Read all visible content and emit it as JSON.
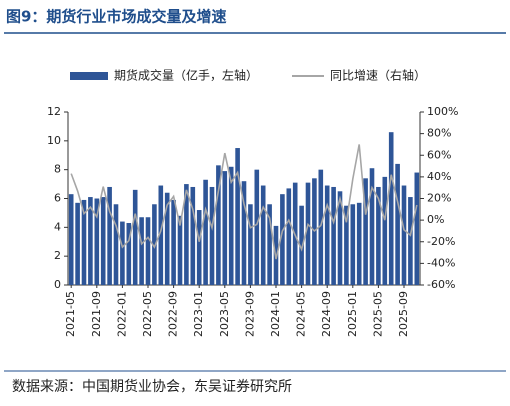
{
  "chart_data": {
    "type": "bar-line",
    "title": "图9：期货行业市场成交量及增速",
    "source": "数据来源：中国期货业协会，东吴证券研究所",
    "categories": [
      "2021-05",
      null,
      null,
      null,
      "2021-09",
      null,
      null,
      null,
      "2022-01",
      null,
      null,
      null,
      "2022-05",
      null,
      null,
      null,
      "2022-09",
      null,
      null,
      null,
      "2023-01",
      null,
      null,
      null,
      "2023-05",
      null,
      null,
      null,
      "2023-09",
      null,
      null,
      null,
      "2024-01",
      null,
      null,
      null,
      "2024-05",
      null,
      null,
      null,
      "2024-09",
      null,
      null,
      null,
      "2025-01",
      null,
      null,
      null,
      "2025-05",
      null,
      null,
      null,
      "2025-09",
      null,
      null
    ],
    "series": [
      {
        "name": "期货成交量（亿手，左轴）",
        "color": "#2e5597",
        "axis": "y",
        "values": [
          6.3,
          5.7,
          5.9,
          6.1,
          6.0,
          6.1,
          6.8,
          5.6,
          4.4,
          4.3,
          6.6,
          4.7,
          4.7,
          5.6,
          6.9,
          6.4,
          5.9,
          4.8,
          7.0,
          6.8,
          5.2,
          7.3,
          6.8,
          8.3,
          7.9,
          8.2,
          9.5,
          7.2,
          5.6,
          8.0,
          6.9,
          5.6,
          4.1,
          6.3,
          6.7,
          7.1,
          5.5,
          7.1,
          7.4,
          8.0,
          6.9,
          6.8,
          6.5,
          5.5,
          5.6,
          5.7,
          7.4,
          8.1,
          6.8,
          7.5,
          10.6,
          8.4,
          6.9,
          6.1,
          7.8
        ]
      },
      {
        "name": "同比增速（右轴）",
        "color": "#a6a6a6",
        "axis": "y2",
        "values": [
          43,
          27,
          6,
          12,
          3,
          31,
          8,
          -5,
          -25,
          -19,
          6,
          -22,
          -16,
          -25,
          -10,
          14,
          22,
          -5,
          28,
          10,
          -20,
          10,
          -7,
          27,
          62,
          35,
          44,
          15,
          -7,
          -4,
          12,
          2,
          -36,
          -10,
          0,
          -14,
          -27,
          -4,
          -10,
          -5,
          14,
          -2,
          20,
          -2,
          38,
          70,
          5,
          30,
          20,
          0,
          42,
          17,
          -9,
          -14,
          14
        ]
      }
    ],
    "ylim": [
      0,
      12
    ],
    "yticks": [
      0,
      2,
      4,
      6,
      8,
      10,
      12
    ],
    "y2lim": [
      -60,
      100
    ],
    "y2ticks": [
      {
        "value": -60,
        "label": "-60%"
      },
      {
        "value": -40,
        "label": "-40%"
      },
      {
        "value": -20,
        "label": "-20%"
      },
      {
        "value": 0,
        "label": "0%"
      },
      {
        "value": 20,
        "label": "20%"
      },
      {
        "value": 40,
        "label": "40%"
      },
      {
        "value": 60,
        "label": "60%"
      },
      {
        "value": 80,
        "label": "80%"
      },
      {
        "value": 100,
        "label": "100%"
      }
    ]
  }
}
